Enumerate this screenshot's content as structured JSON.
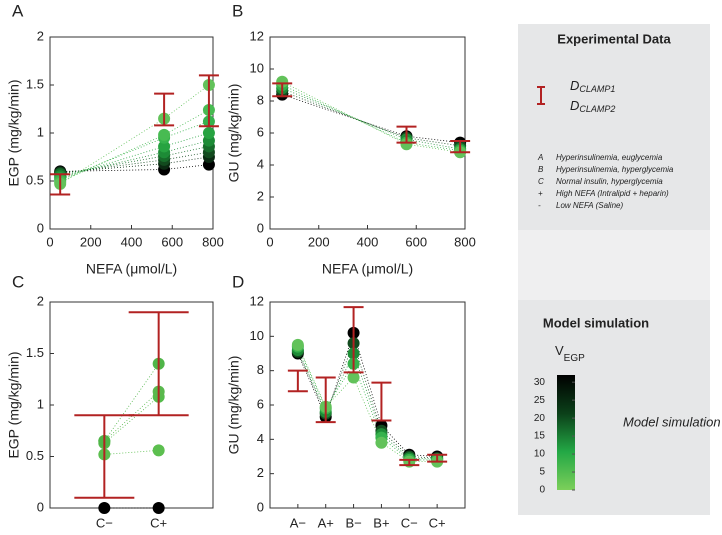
{
  "chart_data": [
    {
      "type": "scatter",
      "panel": "A",
      "xlabel": "NEFA (μmol/L)",
      "ylabel": "EGP  (mg/kg/min)",
      "x": [
        50,
        560,
        780
      ],
      "xlim": [
        0,
        800
      ],
      "xticks": [
        0,
        200,
        400,
        600,
        800
      ],
      "ylim": [
        0,
        2
      ],
      "yticks": [
        0,
        0.5,
        1,
        1.5,
        2
      ],
      "series": [
        {
          "color": "#000000",
          "values": [
            0.6,
            0.62,
            0.67
          ]
        },
        {
          "color": "#0b2a12",
          "values": [
            0.59,
            0.68,
            0.75
          ]
        },
        {
          "color": "#124a1e",
          "values": [
            0.58,
            0.72,
            0.8
          ]
        },
        {
          "color": "#176b2a",
          "values": [
            0.57,
            0.76,
            0.86
          ]
        },
        {
          "color": "#1d8b36",
          "values": [
            0.55,
            0.8,
            0.92
          ]
        },
        {
          "color": "#27a341",
          "values": [
            0.53,
            0.86,
            1.0
          ]
        },
        {
          "color": "#36b24c",
          "values": [
            0.51,
            0.95,
            1.12
          ]
        },
        {
          "color": "#48bb52",
          "values": [
            0.49,
            0.98,
            1.24
          ]
        },
        {
          "color": "#62c25a",
          "values": [
            0.47,
            1.15,
            1.5
          ]
        }
      ],
      "bar_color": "#b22222",
      "bar_low": [
        0.36,
        1.08,
        1.07
      ],
      "bar_high": [
        0.57,
        1.41,
        1.6
      ]
    },
    {
      "type": "scatter",
      "panel": "B",
      "xlabel": "NEFA (μmol/L)",
      "ylabel": "GU   (mg/kg/min)",
      "x": [
        50,
        560,
        780
      ],
      "xlim": [
        0,
        800
      ],
      "xticks": [
        0,
        200,
        400,
        600,
        800
      ],
      "ylim": [
        0,
        12
      ],
      "yticks": [
        0,
        2,
        4,
        6,
        8,
        10,
        12
      ],
      "series": [
        {
          "color": "#000000",
          "values": [
            8.4,
            5.8,
            5.4
          ]
        },
        {
          "color": "#124a1e",
          "values": [
            8.6,
            5.7,
            5.2
          ]
        },
        {
          "color": "#1d8b36",
          "values": [
            8.8,
            5.6,
            5.0
          ]
        },
        {
          "color": "#36b24c",
          "values": [
            9.0,
            5.4,
            4.9
          ]
        },
        {
          "color": "#62c25a",
          "values": [
            9.2,
            5.3,
            4.8
          ]
        }
      ],
      "bar_color": "#b22222",
      "bar_low": [
        8.3,
        5.4,
        4.8
      ],
      "bar_high": [
        9.1,
        6.4,
        5.5
      ]
    },
    {
      "type": "category-scatter",
      "panel": "C",
      "ylabel": "EGP  (mg/kg/min)",
      "categories": [
        "C−",
        "C+"
      ],
      "ylim": [
        0,
        2
      ],
      "yticks": [
        0,
        0.5,
        1,
        1.5,
        2
      ],
      "series": [
        {
          "color": "#000000",
          "values": [
            0,
            0
          ]
        },
        {
          "color": "#5cbf4f",
          "values": [
            0.52,
            0.56
          ]
        },
        {
          "color": "#55bb4b",
          "values": [
            0.63,
            1.08
          ]
        },
        {
          "color": "#5ab84d",
          "values": [
            0.65,
            1.13
          ]
        },
        {
          "color": "#4fb548",
          "values": [
            0.65,
            1.4
          ]
        }
      ],
      "bar_color": "#b22222",
      "bar_low": [
        0.1,
        0.9
      ],
      "bar_high": [
        0.9,
        1.9
      ]
    },
    {
      "type": "category-scatter",
      "panel": "D",
      "ylabel": "GU   (mg/kg/min)",
      "categories": [
        "A−",
        "A+",
        "B−",
        "B+",
        "C−",
        "C+"
      ],
      "ylim": [
        0,
        12
      ],
      "yticks": [
        0,
        2,
        4,
        6,
        8,
        10,
        12
      ],
      "series": [
        {
          "color": "#000000",
          "values": [
            9.0,
            5.3,
            10.2,
            4.8,
            3.1,
            3.0
          ]
        },
        {
          "color": "#124a1e",
          "values": [
            9.1,
            5.5,
            9.6,
            4.5,
            3.0,
            2.9
          ]
        },
        {
          "color": "#1d8b36",
          "values": [
            9.2,
            5.6,
            9.0,
            4.3,
            2.9,
            2.85
          ]
        },
        {
          "color": "#36b24c",
          "values": [
            9.4,
            5.8,
            8.4,
            4.1,
            2.8,
            2.8
          ]
        },
        {
          "color": "#62c25a",
          "values": [
            9.5,
            5.9,
            7.6,
            3.8,
            2.7,
            2.7
          ]
        }
      ],
      "bar_color": "#b22222",
      "bar_low": [
        6.8,
        5.0,
        7.9,
        5.1,
        2.5,
        2.7
      ],
      "bar_high": [
        8.0,
        7.6,
        11.7,
        7.3,
        2.8,
        3.1
      ]
    },
    {
      "type": "colorbar",
      "title": "Model simulation",
      "label": "V",
      "label_sub": "EGP",
      "side_label": "Model simulation",
      "ylim": [
        0,
        32
      ],
      "yticks": [
        0,
        5,
        10,
        15,
        20,
        25,
        30
      ],
      "colors": [
        "#7ccf5a",
        "#23a845",
        "#0b4019",
        "#000000"
      ]
    }
  ],
  "experimental": {
    "title": "Experimental Data",
    "symbols": [
      {
        "letter": "D",
        "sub": "CLAMP1"
      },
      {
        "letter": "D",
        "sub": "CLAMP2"
      }
    ],
    "items": [
      {
        "key": "A",
        "text": "Hyperinsulinemia, euglycemia"
      },
      {
        "key": "B",
        "text": "Hyperinsulinemia, hyperglycemia"
      },
      {
        "key": "C",
        "text": "Normal insulin, hyperglycemia"
      },
      {
        "key": "+",
        "text": "High NEFA (Intralipid + heparin)"
      },
      {
        "key": "-",
        "text": "Low NEFA (Saline)"
      }
    ]
  }
}
